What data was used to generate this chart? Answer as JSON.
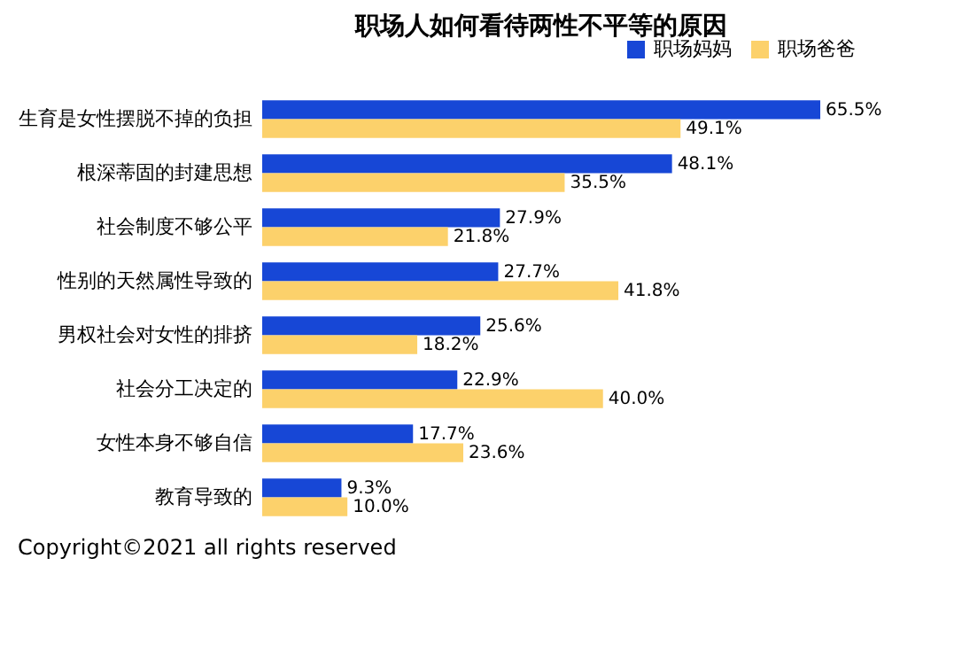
{
  "chart_data": {
    "type": "bar",
    "orientation": "horizontal",
    "title": "职场人如何看待两性不平等的原因",
    "categories": [
      "生育是女性摆脱不掉的负担",
      "根深蒂固的封建思想",
      "社会制度不够公平",
      "性别的天然属性导致的",
      "男权社会对女性的排挤",
      "社会分工决定的",
      "女性本身不够自信",
      "教育导致的"
    ],
    "series": [
      {
        "name": "职场妈妈",
        "color": "#1747d6",
        "values": [
          65.5,
          48.1,
          27.9,
          27.7,
          25.6,
          22.9,
          17.7,
          9.3
        ],
        "value_labels": [
          "65.5%",
          "48.1%",
          "27.9%",
          "27.7%",
          "25.6%",
          "22.9%",
          "17.7%",
          "9.3%"
        ]
      },
      {
        "name": "职场爸爸",
        "color": "#fcd16b",
        "values": [
          49.1,
          35.5,
          21.8,
          41.8,
          18.2,
          40.0,
          23.6,
          10.0
        ],
        "value_labels": [
          "49.1%",
          "35.5%",
          "21.8%",
          "41.8%",
          "18.2%",
          "40.0%",
          "23.6%",
          "10.0%"
        ]
      }
    ],
    "tick_labels": "y",
    "legend": "top right",
    "annotations": [
      "Copyright©2021 all rights reserved"
    ]
  }
}
